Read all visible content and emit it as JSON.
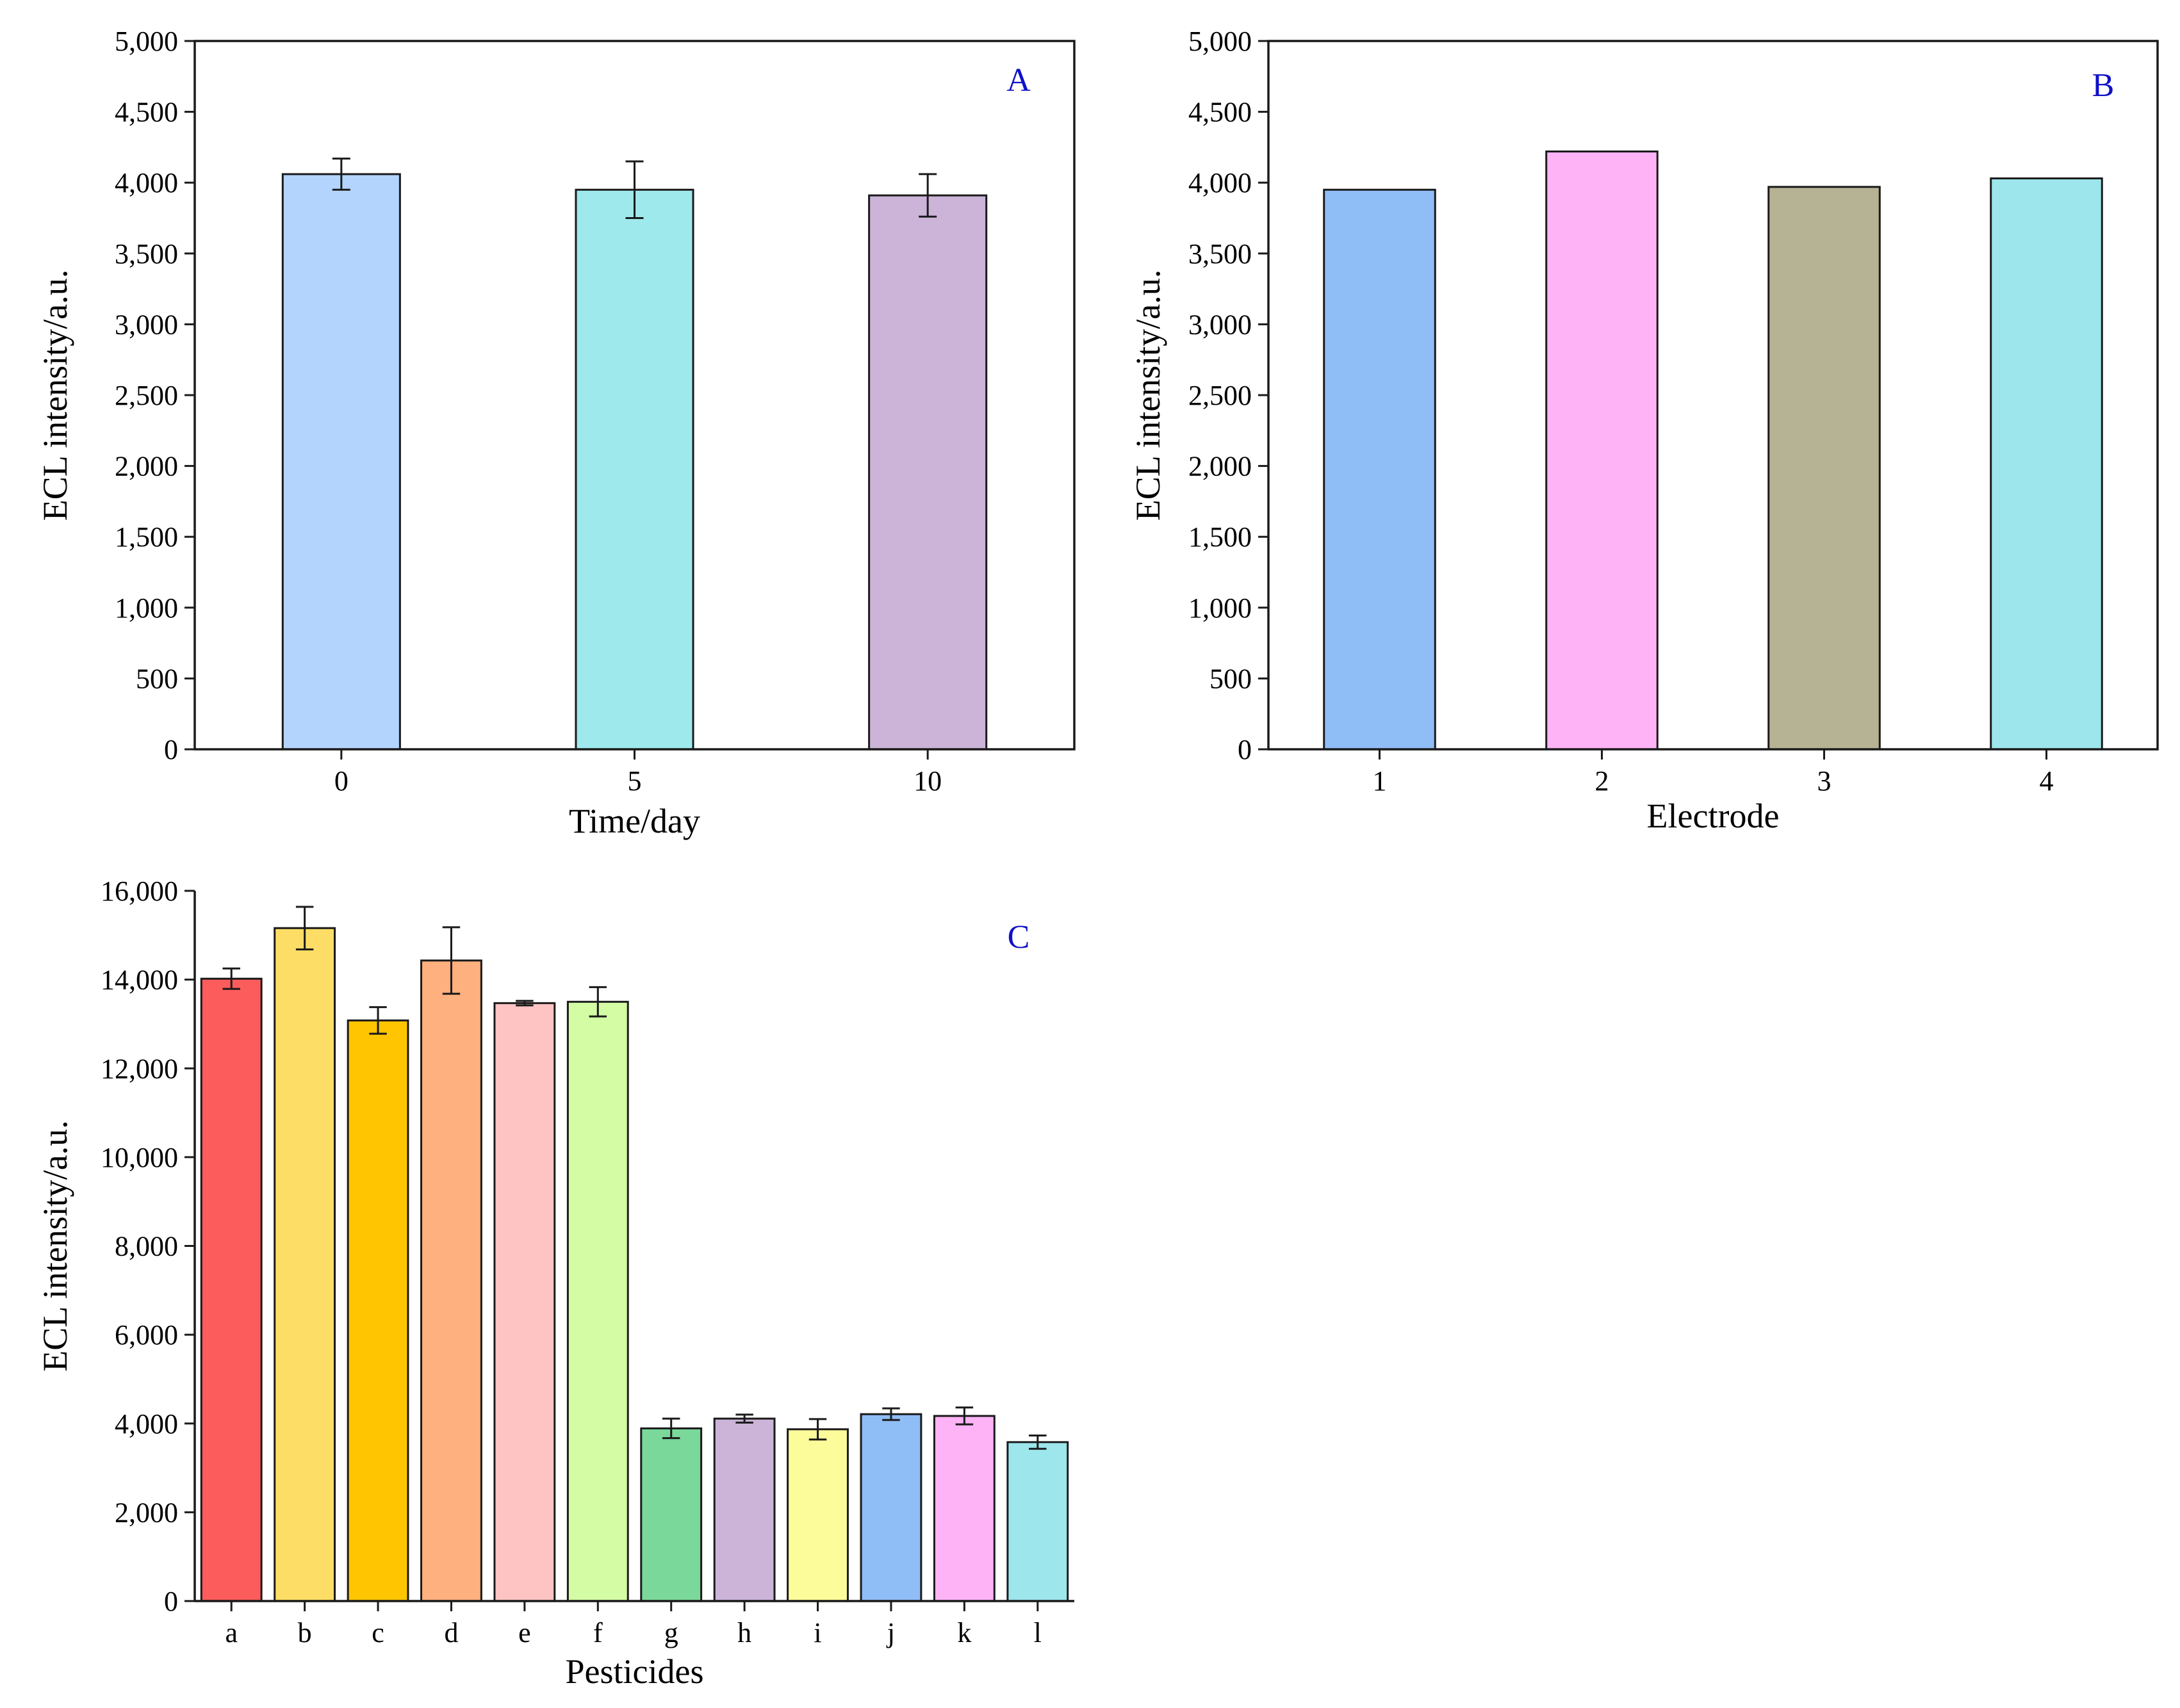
{
  "chart_data": [
    {
      "panel": "A",
      "type": "bar",
      "xlabel": "Time/day",
      "ylabel": "ECL intensity/a.u.",
      "ylim": [
        0,
        5000
      ],
      "yticks": [
        0,
        500,
        1000,
        1500,
        2000,
        2500,
        3000,
        3500,
        4000,
        4500,
        5000
      ],
      "ytick_labels": [
        "0",
        "500",
        "1,000",
        "1,500",
        "2,000",
        "2,500",
        "3,000",
        "3,500",
        "4,000",
        "4,500",
        "5,000"
      ],
      "categories": [
        "0",
        "5",
        "10"
      ],
      "values": [
        4060,
        3950,
        3910
      ],
      "errors": [
        110,
        200,
        150
      ],
      "colors": [
        "#b3d4fc",
        "#9ee9ec",
        "#cbb4d8"
      ],
      "grid": false
    },
    {
      "panel": "B",
      "type": "bar",
      "xlabel": "Electrode",
      "ylabel": "ECL intensity/a.u.",
      "ylim": [
        0,
        5000
      ],
      "yticks": [
        0,
        500,
        1000,
        1500,
        2000,
        2500,
        3000,
        3500,
        4000,
        4500,
        5000
      ],
      "ytick_labels": [
        "0",
        "500",
        "1,000",
        "1,500",
        "2,000",
        "2,500",
        "3,000",
        "3,500",
        "4,000",
        "4,500",
        "5,000"
      ],
      "categories": [
        "1",
        "2",
        "3",
        "4"
      ],
      "values": [
        3950,
        4220,
        3970,
        4030
      ],
      "colors": [
        "#8fbdf6",
        "#fdb3f6",
        "#b5b393",
        "#9de6ec"
      ],
      "grid": false
    },
    {
      "panel": "C",
      "type": "bar",
      "xlabel": "Pesticides",
      "ylabel": "ECL intensity/a.u.",
      "ylim": [
        0,
        16000
      ],
      "yticks": [
        0,
        2000,
        4000,
        6000,
        8000,
        10000,
        12000,
        14000,
        16000
      ],
      "ytick_labels": [
        "0",
        "2,000",
        "4,000",
        "6,000",
        "8,000",
        "10,000",
        "12,000",
        "14,000",
        "16,000"
      ],
      "categories": [
        "a",
        "b",
        "c",
        "d",
        "e",
        "f",
        "g",
        "h",
        "i",
        "j",
        "k",
        "l"
      ],
      "values": [
        14020,
        15160,
        13080,
        14430,
        13470,
        13500,
        3890,
        4110,
        3870,
        4210,
        4170,
        3580
      ],
      "errors": [
        230,
        480,
        300,
        750,
        50,
        330,
        220,
        90,
        230,
        130,
        190,
        150
      ],
      "colors": [
        "#fd5c5c",
        "#fedd66",
        "#fec500",
        "#feb07f",
        "#fec4c4",
        "#d4fca5",
        "#7ad89b",
        "#cbb4d8",
        "#fcfc9b",
        "#8fbdf6",
        "#fdb3f6",
        "#9de6ec"
      ],
      "grid": false
    }
  ]
}
